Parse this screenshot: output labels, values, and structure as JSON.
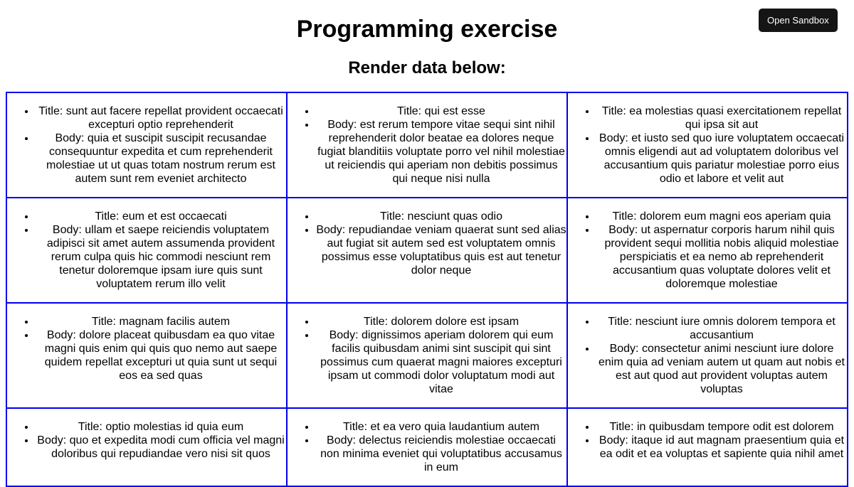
{
  "page": {
    "title": "Programming exercise",
    "subtitle": "Render data below:"
  },
  "posts": [
    {
      "title": "Title: sunt aut facere repellat provident occaecati excepturi optio reprehenderit",
      "body": "Body: quia et suscipit suscipit recusandae consequuntur expedita et cum reprehenderit molestiae ut ut quas totam nostrum rerum est autem sunt rem eveniet architecto"
    },
    {
      "title": "Title: qui est esse",
      "body": "Body: est rerum tempore vitae sequi sint nihil reprehenderit dolor beatae ea dolores neque fugiat blanditiis voluptate porro vel nihil molestiae ut reiciendis qui aperiam non debitis possimus qui neque nisi nulla"
    },
    {
      "title": "Title: ea molestias quasi exercitationem repellat qui ipsa sit aut",
      "body": "Body: et iusto sed quo iure voluptatem occaecati omnis eligendi aut ad voluptatem doloribus vel accusantium quis pariatur molestiae porro eius odio et labore et velit aut"
    },
    {
      "title": "Title: eum et est occaecati",
      "body": "Body: ullam et saepe reiciendis voluptatem adipisci sit amet autem assumenda provident rerum culpa quis hic commodi nesciunt rem tenetur doloremque ipsam iure quis sunt voluptatem rerum illo velit"
    },
    {
      "title": "Title: nesciunt quas odio",
      "body": "Body: repudiandae veniam quaerat sunt sed alias aut fugiat sit autem sed est voluptatem omnis possimus esse voluptatibus quis est aut tenetur dolor neque"
    },
    {
      "title": "Title: dolorem eum magni eos aperiam quia",
      "body": "Body: ut aspernatur corporis harum nihil quis provident sequi mollitia nobis aliquid molestiae perspiciatis et ea nemo ab reprehenderit accusantium quas voluptate dolores velit et doloremque molestiae"
    },
    {
      "title": "Title: magnam facilis autem",
      "body": "Body: dolore placeat quibusdam ea quo vitae magni quis enim qui quis quo nemo aut saepe quidem repellat excepturi ut quia sunt ut sequi eos ea sed quas"
    },
    {
      "title": "Title: dolorem dolore est ipsam",
      "body": "Body: dignissimos aperiam dolorem qui eum facilis quibusdam animi sint suscipit qui sint possimus cum quaerat magni maiores excepturi ipsam ut commodi dolor voluptatum modi aut vitae"
    },
    {
      "title": "Title: nesciunt iure omnis dolorem tempora et accusantium",
      "body": "Body: consectetur animi nesciunt iure dolore enim quia ad veniam autem ut quam aut nobis et est aut quod aut provident voluptas autem voluptas"
    },
    {
      "title": "Title: optio molestias id quia eum",
      "body": "Body: quo et expedita modi cum officia vel magni doloribus qui repudiandae vero nisi sit quos"
    },
    {
      "title": "Title: et ea vero quia laudantium autem",
      "body": "Body: delectus reiciendis molestiae occaecati non minima eveniet qui voluptatibus accusamus in eum"
    },
    {
      "title": "Title: in quibusdam tempore odit est dolorem",
      "body": "Body: itaque id aut magnam praesentium quia et ea odit et ea voluptas et sapiente quia nihil amet"
    }
  ],
  "sandbox_button": {
    "label": "Open Sandbox"
  },
  "colors": {
    "border": "#0000ee",
    "button_bg": "#151515"
  }
}
